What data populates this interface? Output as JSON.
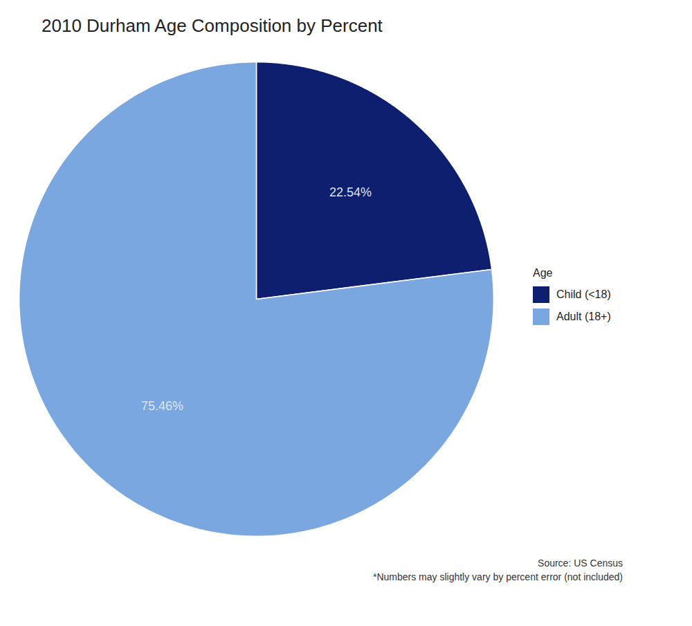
{
  "chart_data": {
    "type": "pie",
    "title": "2010 Durham Age Composition by Percent",
    "categories": [
      "Child (<18)",
      "Adult (18+)"
    ],
    "values": [
      22.54,
      75.46
    ],
    "value_labels": [
      "22.54%",
      "75.46%"
    ],
    "colors": [
      "#0d1f6e",
      "#7ba7e0"
    ],
    "data_labels": true,
    "legend": "right",
    "legend_title": "Age",
    "annotations": [
      "Source: US Census",
      "*Numbers may slightly vary by percent error (not included)"
    ]
  }
}
